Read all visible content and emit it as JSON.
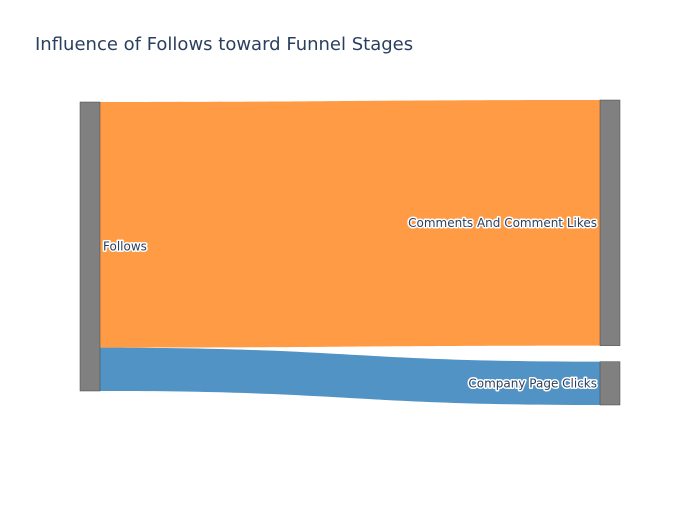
{
  "chart_data": {
    "type": "sankey",
    "title": "Influence of Follows toward Funnel Stages",
    "nodes": [
      {
        "name": "Follows",
        "color": "#808080"
      },
      {
        "name": "Comments And Comment Likes",
        "color": "#808080"
      },
      {
        "name": "Company Page Clicks",
        "color": "#808080"
      }
    ],
    "links": [
      {
        "source": "Follows",
        "target": "Comments And Comment Likes",
        "value": 85,
        "color": "#ff983f"
      },
      {
        "source": "Follows",
        "target": "Company Page Clicks",
        "value": 15,
        "color": "#4a90c2"
      }
    ]
  }
}
